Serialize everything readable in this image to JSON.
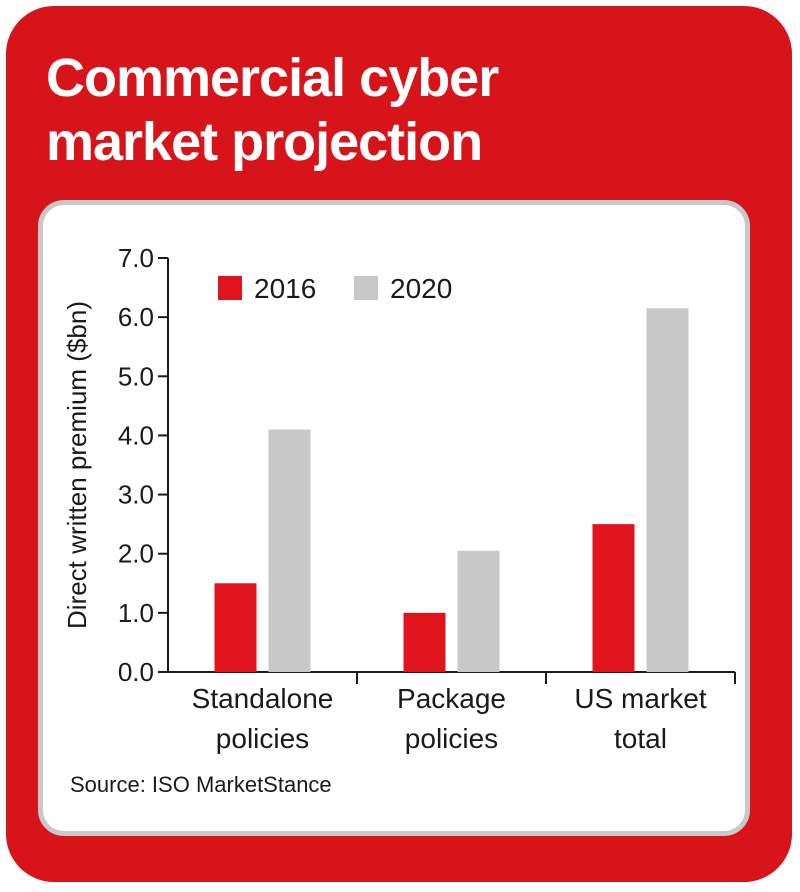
{
  "header": {
    "title_line1": "Commercial cyber",
    "title_line2": "market projection"
  },
  "source": "Source: ISO MarketStance",
  "colors": {
    "card": "#d7141a",
    "series_2016": "#e0141c",
    "series_2020": "#c8c8c8",
    "panel_border": "#c8c8c8"
  },
  "chart_data": {
    "type": "bar",
    "ylabel": "Direct written premium ($bn)",
    "ylim": [
      0,
      7
    ],
    "yticks": [
      "0.0",
      "1.0",
      "2.0",
      "3.0",
      "4.0",
      "5.0",
      "6.0",
      "7.0"
    ],
    "categories": [
      [
        "Standalone",
        "policies"
      ],
      [
        "Package",
        "policies"
      ],
      [
        "US market",
        "total"
      ]
    ],
    "series": [
      {
        "name": "2016",
        "values": [
          1.5,
          1.0,
          2.5
        ]
      },
      {
        "name": "2020",
        "values": [
          4.1,
          2.05,
          6.15
        ]
      }
    ],
    "legend": "top-left",
    "grid": false
  }
}
